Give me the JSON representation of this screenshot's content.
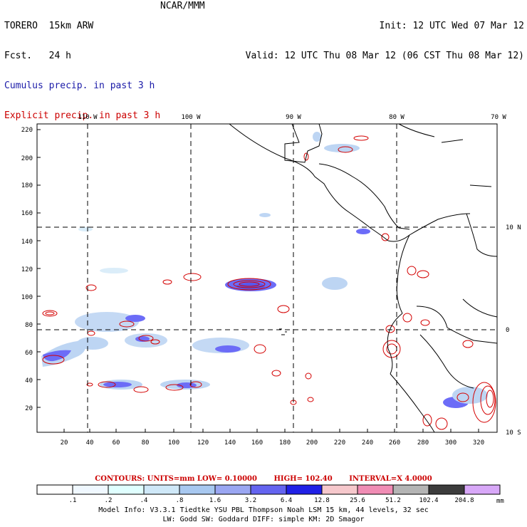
{
  "header": {
    "model": "TORERO  15km ARW",
    "org": "NCAR/MMM",
    "forecast": "Fcst.   24 h",
    "init": "Init: 12 UTC Wed 07 Mar 12",
    "valid": "Valid: 12 UTC Thu 08 Mar 12 (06 CST Thu 08 Mar 12)",
    "legend_cumulus": "Cumulus precip. in past 3 h",
    "legend_explicit": "Explicit precip. in past 3 h"
  },
  "map": {
    "top_labels": [
      "110 W",
      "100 W",
      "90 W",
      "80 W",
      "70 W"
    ],
    "right_labels": [
      "10 N",
      "0",
      "10 S"
    ],
    "y_ticks": [
      "220",
      "200",
      "180",
      "160",
      "140",
      "120",
      "100",
      "80",
      "60",
      "40",
      "20"
    ],
    "x_ticks": [
      "20",
      "40",
      "60",
      "80",
      "100",
      "120",
      "140",
      "160",
      "180",
      "200",
      "220",
      "240",
      "260",
      "280",
      "300",
      "320"
    ],
    "colors": {
      "cumulus": "#3b3bf5",
      "explicit": "#d40000",
      "coast": "#000000"
    }
  },
  "contours": {
    "header": "CONTOURS:  UNITS=mm  LOW= 0.10000",
    "high": "HIGH=  102.40",
    "interval": "INTERVAL=X  4.0000"
  },
  "colorbar": {
    "labels": [
      ".1",
      ".2",
      ".4",
      ".8",
      "1.6",
      "3.2",
      "6.4",
      "12.8",
      "25.6",
      "51.2",
      "102.4",
      "204.8"
    ],
    "unit": "mm",
    "colors": [
      "#ffffff",
      "#f0f8ff",
      "#e0ffff",
      "#cfe8f8",
      "#a8c8f0",
      "#9aa6f2",
      "#6464f0",
      "#2020e6",
      "#f6c8cc",
      "#f08cb4",
      "#b4b4b4",
      "#3c3c3c",
      "#d8a8f8"
    ]
  },
  "footer": {
    "line1": "Model Info: V3.3.1   Tiedtke YSU PBL  Thompson     Noah LSM  15 km,    44 levels,    32 sec",
    "line2": "LW: Godd SW: Goddard DIFF: simple KM: 2D Smagor"
  }
}
